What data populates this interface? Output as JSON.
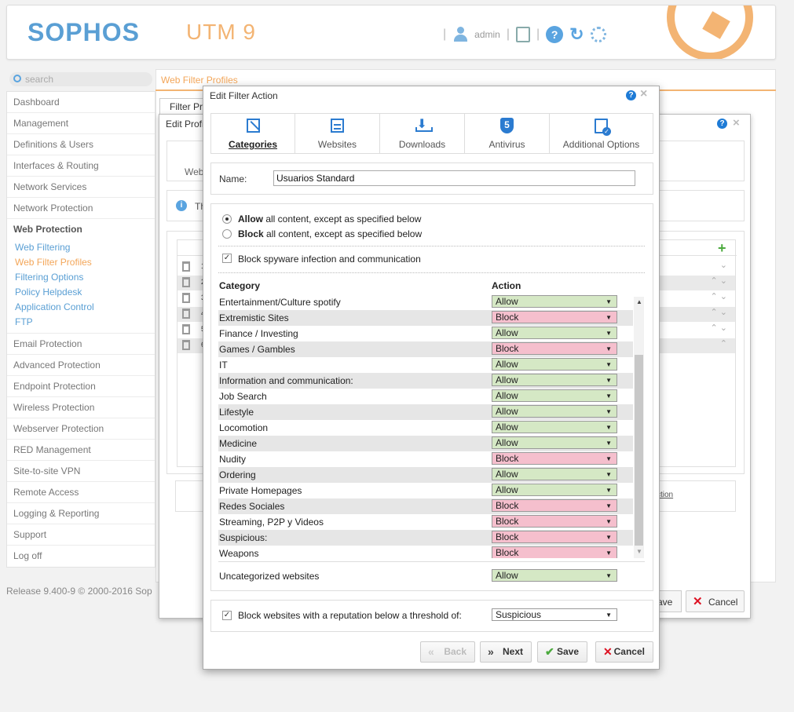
{
  "header": {
    "logo": "SOPHOS",
    "product": "UTM 9",
    "user": "admin",
    "help_glyph": "?",
    "refresh_glyph": "↻"
  },
  "sidebar": {
    "search_placeholder": "search",
    "items": [
      {
        "label": "Dashboard"
      },
      {
        "label": "Management"
      },
      {
        "label": "Definitions & Users"
      },
      {
        "label": "Interfaces & Routing"
      },
      {
        "label": "Network Services"
      },
      {
        "label": "Network Protection"
      }
    ],
    "web_protection": {
      "label": "Web Protection",
      "subitems": [
        {
          "label": "Web Filtering"
        },
        {
          "label": "Web Filter Profiles"
        },
        {
          "label": "Filtering Options"
        },
        {
          "label": "Policy Helpdesk"
        },
        {
          "label": "Application Control"
        },
        {
          "label": "FTP"
        }
      ]
    },
    "items_after": [
      {
        "label": "Email Protection"
      },
      {
        "label": "Advanced Protection"
      },
      {
        "label": "Endpoint Protection"
      },
      {
        "label": "Wireless Protection"
      },
      {
        "label": "Webserver Protection"
      },
      {
        "label": "RED Management"
      },
      {
        "label": "Site-to-site VPN"
      },
      {
        "label": "Remote Access"
      },
      {
        "label": "Logging & Reporting"
      },
      {
        "label": "Support"
      },
      {
        "label": "Log off"
      }
    ],
    "release": "Release 9.400-9  © 2000-2016 Sop"
  },
  "main": {
    "breadcrumb": "Web Filter Profiles",
    "tab_stub": "Filter Pr"
  },
  "edit_profile": {
    "title": "Edit Profi",
    "web_label": "Web",
    "info_text": "Th",
    "info_glyph": "i",
    "rows": [
      "1",
      "2",
      "3",
      "4",
      "5",
      "6"
    ],
    "link_text": "ction",
    "save_label": "ave",
    "cancel_label": "Cancel"
  },
  "dialog": {
    "title": "Edit Filter Action",
    "tabs": [
      {
        "label": "Categories",
        "icon": "categories-icon"
      },
      {
        "label": "Websites",
        "icon": "websites-icon"
      },
      {
        "label": "Downloads",
        "icon": "downloads-icon"
      },
      {
        "label": "Antivirus",
        "icon": "antivirus-shield-icon"
      },
      {
        "label": "Additional Options",
        "icon": "additional-options-icon"
      }
    ],
    "antivirus_glyph": "5",
    "name_label": "Name:",
    "name_value": "Usuarios Standard",
    "allow_bold": "Allow",
    "allow_rest": "all content, except as specified below",
    "block_bold": "Block",
    "block_rest": "all content, except as specified below",
    "spyware_label": "Block spyware infection and communication",
    "category_header": "Category",
    "action_header": "Action",
    "categories": [
      {
        "name": "Entertainment/Culture spotify",
        "action": "Allow"
      },
      {
        "name": "Extremistic Sites",
        "action": "Block"
      },
      {
        "name": "Finance / Investing",
        "action": "Allow"
      },
      {
        "name": "Games / Gambles",
        "action": "Block"
      },
      {
        "name": "IT",
        "action": "Allow"
      },
      {
        "name": "Information and communication:",
        "action": "Allow"
      },
      {
        "name": "Job Search",
        "action": "Allow"
      },
      {
        "name": "Lifestyle",
        "action": "Allow"
      },
      {
        "name": "Locomotion",
        "action": "Allow"
      },
      {
        "name": "Medicine",
        "action": "Allow"
      },
      {
        "name": "Nudity",
        "action": "Block"
      },
      {
        "name": "Ordering",
        "action": "Allow"
      },
      {
        "name": "Private Homepages",
        "action": "Allow"
      },
      {
        "name": "Redes Sociales",
        "action": "Block"
      },
      {
        "name": "Streaming, P2P y Videos",
        "action": "Block"
      },
      {
        "name": "Suspicious:",
        "action": "Block"
      },
      {
        "name": "Weapons",
        "action": "Block"
      }
    ],
    "uncategorized_label": "Uncategorized websites",
    "uncategorized_action": "Allow",
    "reputation_label": "Block websites with a reputation below a threshold of:",
    "reputation_value": "Suspicious",
    "buttons": {
      "back": "Back",
      "next": "Next",
      "save": "Save",
      "cancel": "Cancel"
    },
    "colors": {
      "allow": "#d5e8c5",
      "block": "#f5bfcd"
    }
  }
}
